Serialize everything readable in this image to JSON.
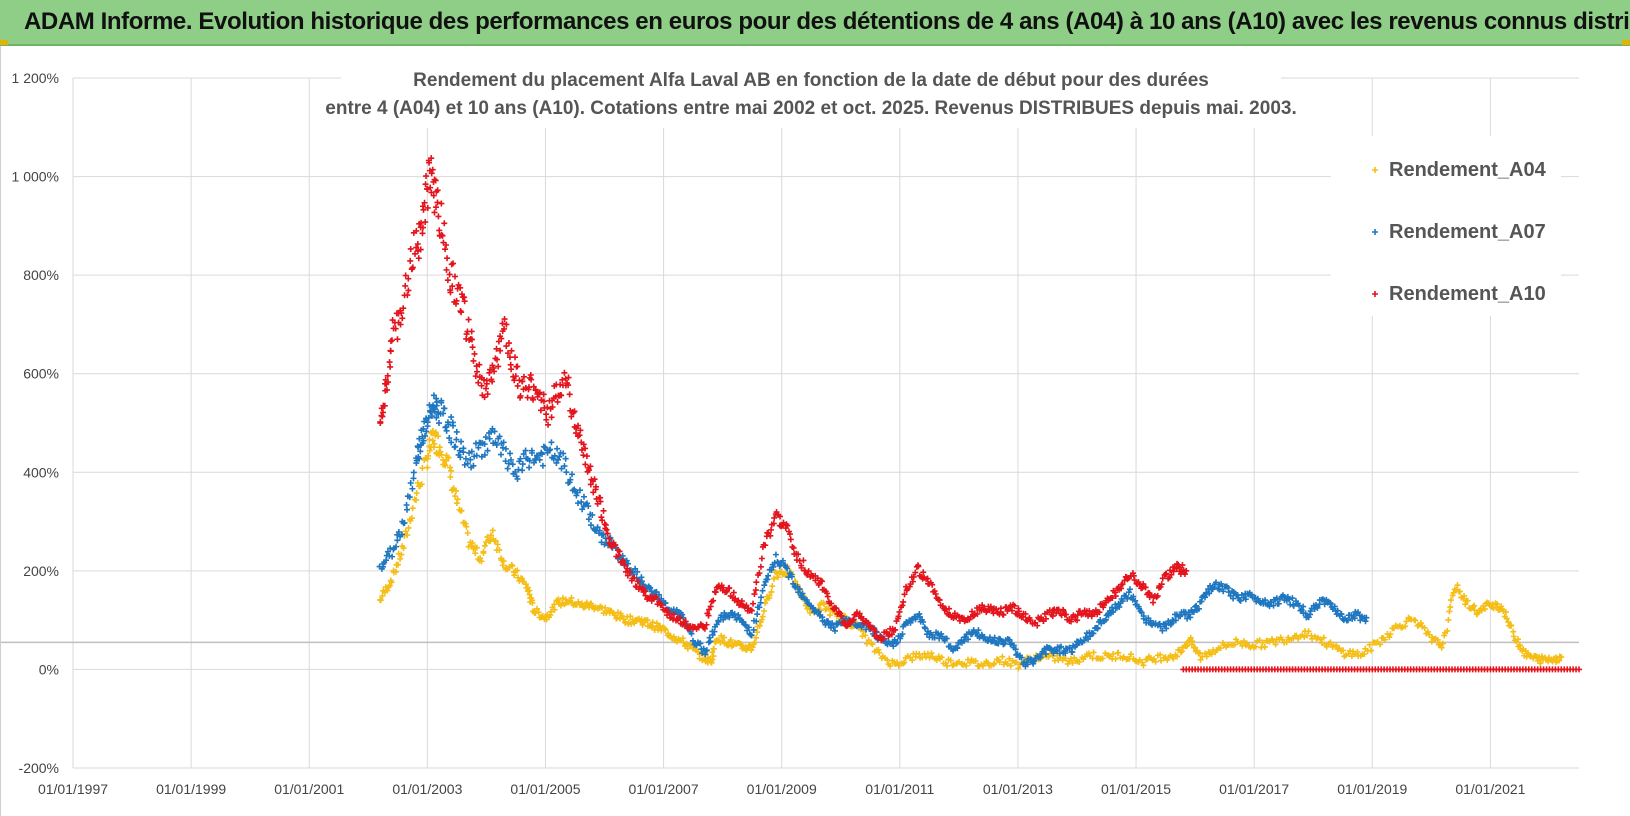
{
  "header": {
    "title": "ADAM Informe. Evolution historique des performances en euros pour des détentions de 4 ans (A04) à 10 ans (A10) avec les revenus connus distribués"
  },
  "colors": {
    "header_bg": "#8fce86",
    "a04": "#f5be16",
    "a07": "#1f77c0",
    "a10": "#e3141c",
    "grid": "#d9d9d9",
    "ref_line": "#bfbfbf"
  },
  "chart_data": {
    "type": "scatter",
    "title_line1": "Rendement du placement Alfa Laval AB en fonction de la date de début pour des durées",
    "title_line2": "entre 4 (A04) et 10 ans (A10). Cotations entre mai 2002 et oct. 2025. Revenus DISTRIBUES depuis mai. 2003.",
    "ylim": [
      -200,
      1200
    ],
    "yticks": [
      -200,
      0,
      200,
      400,
      600,
      800,
      1000,
      1200
    ],
    "ytick_labels": [
      "-200%",
      "0%",
      "200%",
      "400%",
      "600%",
      "800%",
      "1 000%",
      "1 200%"
    ],
    "xlim": [
      1997.0,
      2022.5
    ],
    "xticks": [
      1997,
      1999,
      2001,
      2003,
      2005,
      2007,
      2009,
      2011,
      2013,
      2015,
      2017,
      2019,
      2021
    ],
    "xtick_labels": [
      "01/01/1997",
      "01/01/1999",
      "01/01/2001",
      "01/01/2003",
      "01/01/2005",
      "01/01/2007",
      "01/01/2009",
      "01/01/2011",
      "01/01/2013",
      "01/01/2015",
      "01/01/2017",
      "01/01/2019",
      "01/01/2021"
    ],
    "reference_line_y": 55,
    "legend_position": "right",
    "series": [
      {
        "name": "Rendement_A04",
        "points": [
          [
            2002.2,
            140
          ],
          [
            2002.4,
            185
          ],
          [
            2002.6,
            250
          ],
          [
            2002.8,
            350
          ],
          [
            2003.0,
            430
          ],
          [
            2003.1,
            470
          ],
          [
            2003.2,
            455
          ],
          [
            2003.35,
            420
          ],
          [
            2003.5,
            340
          ],
          [
            2003.7,
            260
          ],
          [
            2003.9,
            225
          ],
          [
            2004.1,
            280
          ],
          [
            2004.3,
            215
          ],
          [
            2004.5,
            195
          ],
          [
            2004.7,
            165
          ],
          [
            2004.8,
            120
          ],
          [
            2005.0,
            105
          ],
          [
            2005.2,
            135
          ],
          [
            2005.4,
            140
          ],
          [
            2005.6,
            130
          ],
          [
            2005.8,
            130
          ],
          [
            2006.0,
            120
          ],
          [
            2006.2,
            110
          ],
          [
            2006.4,
            100
          ],
          [
            2006.6,
            100
          ],
          [
            2006.8,
            90
          ],
          [
            2007.0,
            80
          ],
          [
            2007.2,
            65
          ],
          [
            2007.4,
            50
          ],
          [
            2007.6,
            30
          ],
          [
            2007.8,
            15
          ],
          [
            2007.9,
            65
          ],
          [
            2008.1,
            55
          ],
          [
            2008.3,
            45
          ],
          [
            2008.5,
            45
          ],
          [
            2008.7,
            120
          ],
          [
            2008.9,
            195
          ],
          [
            2009.1,
            200
          ],
          [
            2009.3,
            160
          ],
          [
            2009.5,
            115
          ],
          [
            2009.7,
            130
          ],
          [
            2009.9,
            110
          ],
          [
            2010.1,
            100
          ],
          [
            2010.3,
            85
          ],
          [
            2010.6,
            35
          ],
          [
            2010.9,
            10
          ],
          [
            2011.2,
            25
          ],
          [
            2011.5,
            30
          ],
          [
            2011.8,
            15
          ],
          [
            2012.1,
            15
          ],
          [
            2012.4,
            10
          ],
          [
            2012.7,
            20
          ],
          [
            2013.0,
            10
          ],
          [
            2013.3,
            25
          ],
          [
            2013.6,
            25
          ],
          [
            2013.9,
            15
          ],
          [
            2014.2,
            30
          ],
          [
            2014.5,
            25
          ],
          [
            2014.8,
            30
          ],
          [
            2015.1,
            15
          ],
          [
            2015.4,
            25
          ],
          [
            2015.7,
            30
          ],
          [
            2015.9,
            60
          ],
          [
            2016.1,
            25
          ],
          [
            2016.4,
            45
          ],
          [
            2016.7,
            55
          ],
          [
            2017.0,
            50
          ],
          [
            2017.3,
            55
          ],
          [
            2017.6,
            65
          ],
          [
            2017.9,
            75
          ],
          [
            2018.2,
            55
          ],
          [
            2018.5,
            35
          ],
          [
            2018.8,
            30
          ],
          [
            2019.1,
            55
          ],
          [
            2019.4,
            85
          ],
          [
            2019.7,
            105
          ],
          [
            2020.0,
            60
          ],
          [
            2020.2,
            50
          ],
          [
            2020.4,
            170
          ],
          [
            2020.6,
            135
          ],
          [
            2020.8,
            115
          ],
          [
            2021.0,
            135
          ],
          [
            2021.2,
            125
          ],
          [
            2021.4,
            70
          ],
          [
            2021.6,
            30
          ],
          [
            2021.8,
            20
          ],
          [
            2022.0,
            20
          ],
          [
            2022.2,
            25
          ]
        ]
      },
      {
        "name": "Rendement_A07",
        "points": [
          [
            2002.2,
            205
          ],
          [
            2002.4,
            240
          ],
          [
            2002.6,
            300
          ],
          [
            2002.8,
            420
          ],
          [
            2002.9,
            470
          ],
          [
            2003.0,
            500
          ],
          [
            2003.1,
            540
          ],
          [
            2003.2,
            525
          ],
          [
            2003.35,
            500
          ],
          [
            2003.5,
            460
          ],
          [
            2003.7,
            420
          ],
          [
            2003.9,
            450
          ],
          [
            2004.1,
            470
          ],
          [
            2004.3,
            440
          ],
          [
            2004.5,
            395
          ],
          [
            2004.7,
            430
          ],
          [
            2004.9,
            430
          ],
          [
            2005.1,
            440
          ],
          [
            2005.3,
            420
          ],
          [
            2005.5,
            360
          ],
          [
            2005.7,
            330
          ],
          [
            2005.9,
            270
          ],
          [
            2006.1,
            260
          ],
          [
            2006.3,
            220
          ],
          [
            2006.5,
            200
          ],
          [
            2006.7,
            165
          ],
          [
            2006.9,
            150
          ],
          [
            2007.1,
            120
          ],
          [
            2007.3,
            110
          ],
          [
            2007.5,
            60
          ],
          [
            2007.7,
            35
          ],
          [
            2007.9,
            95
          ],
          [
            2008.1,
            115
          ],
          [
            2008.3,
            100
          ],
          [
            2008.5,
            75
          ],
          [
            2008.7,
            165
          ],
          [
            2008.9,
            225
          ],
          [
            2009.1,
            200
          ],
          [
            2009.3,
            160
          ],
          [
            2009.5,
            130
          ],
          [
            2009.7,
            100
          ],
          [
            2009.9,
            85
          ],
          [
            2010.1,
            100
          ],
          [
            2010.3,
            90
          ],
          [
            2010.5,
            85
          ],
          [
            2010.7,
            55
          ],
          [
            2010.9,
            50
          ],
          [
            2011.1,
            90
          ],
          [
            2011.3,
            110
          ],
          [
            2011.5,
            70
          ],
          [
            2011.7,
            70
          ],
          [
            2011.9,
            40
          ],
          [
            2012.1,
            65
          ],
          [
            2012.3,
            75
          ],
          [
            2012.5,
            60
          ],
          [
            2012.7,
            60
          ],
          [
            2012.9,
            55
          ],
          [
            2013.1,
            10
          ],
          [
            2013.3,
            20
          ],
          [
            2013.5,
            40
          ],
          [
            2013.7,
            40
          ],
          [
            2013.9,
            40
          ],
          [
            2014.1,
            60
          ],
          [
            2014.3,
            80
          ],
          [
            2014.5,
            110
          ],
          [
            2014.7,
            130
          ],
          [
            2014.9,
            155
          ],
          [
            2015.1,
            110
          ],
          [
            2015.3,
            90
          ],
          [
            2015.5,
            85
          ],
          [
            2015.7,
            110
          ],
          [
            2015.9,
            110
          ],
          [
            2016.1,
            135
          ],
          [
            2016.3,
            170
          ],
          [
            2016.5,
            165
          ],
          [
            2016.7,
            145
          ],
          [
            2016.9,
            150
          ],
          [
            2017.1,
            140
          ],
          [
            2017.3,
            135
          ],
          [
            2017.5,
            145
          ],
          [
            2017.7,
            135
          ],
          [
            2017.9,
            110
          ],
          [
            2018.1,
            135
          ],
          [
            2018.3,
            135
          ],
          [
            2018.5,
            105
          ],
          [
            2018.7,
            110
          ],
          [
            2018.9,
            105
          ]
        ]
      },
      {
        "name": "Rendement_A10",
        "points": [
          [
            2002.2,
            500
          ],
          [
            2002.3,
            560
          ],
          [
            2002.4,
            680
          ],
          [
            2002.55,
            700
          ],
          [
            2002.7,
            820
          ],
          [
            2002.85,
            870
          ],
          [
            2002.95,
            930
          ],
          [
            2003.05,
            1010
          ],
          [
            2003.15,
            960
          ],
          [
            2003.25,
            890
          ],
          [
            2003.4,
            800
          ],
          [
            2003.55,
            760
          ],
          [
            2003.7,
            680
          ],
          [
            2003.85,
            600
          ],
          [
            2004.0,
            560
          ],
          [
            2004.15,
            620
          ],
          [
            2004.3,
            700
          ],
          [
            2004.45,
            620
          ],
          [
            2004.6,
            560
          ],
          [
            2004.75,
            580
          ],
          [
            2004.9,
            550
          ],
          [
            2005.05,
            520
          ],
          [
            2005.2,
            560
          ],
          [
            2005.35,
            600
          ],
          [
            2005.5,
            500
          ],
          [
            2005.65,
            440
          ],
          [
            2005.8,
            380
          ],
          [
            2005.95,
            320
          ],
          [
            2006.1,
            260
          ],
          [
            2006.3,
            220
          ],
          [
            2006.5,
            180
          ],
          [
            2006.7,
            150
          ],
          [
            2006.9,
            140
          ],
          [
            2007.1,
            110
          ],
          [
            2007.3,
            100
          ],
          [
            2007.5,
            80
          ],
          [
            2007.7,
            90
          ],
          [
            2007.9,
            170
          ],
          [
            2008.1,
            160
          ],
          [
            2008.3,
            135
          ],
          [
            2008.5,
            120
          ],
          [
            2008.7,
            250
          ],
          [
            2008.9,
            310
          ],
          [
            2009.1,
            280
          ],
          [
            2009.3,
            220
          ],
          [
            2009.5,
            190
          ],
          [
            2009.7,
            170
          ],
          [
            2009.9,
            120
          ],
          [
            2010.1,
            90
          ],
          [
            2010.3,
            115
          ],
          [
            2010.5,
            80
          ],
          [
            2010.7,
            65
          ],
          [
            2010.9,
            80
          ],
          [
            2011.1,
            160
          ],
          [
            2011.3,
            205
          ],
          [
            2011.5,
            175
          ],
          [
            2011.7,
            130
          ],
          [
            2011.9,
            110
          ],
          [
            2012.1,
            100
          ],
          [
            2012.3,
            120
          ],
          [
            2012.5,
            125
          ],
          [
            2012.7,
            115
          ],
          [
            2012.9,
            125
          ],
          [
            2013.1,
            110
          ],
          [
            2013.3,
            95
          ],
          [
            2013.5,
            110
          ],
          [
            2013.7,
            120
          ],
          [
            2013.9,
            100
          ],
          [
            2014.1,
            115
          ],
          [
            2014.3,
            110
          ],
          [
            2014.5,
            140
          ],
          [
            2014.7,
            160
          ],
          [
            2014.9,
            195
          ],
          [
            2015.1,
            170
          ],
          [
            2015.3,
            140
          ],
          [
            2015.5,
            190
          ],
          [
            2015.7,
            205
          ],
          [
            2015.85,
            200
          ]
        ]
      }
    ],
    "zero_segment": {
      "series": "Rendement_A10",
      "x_from": 2015.8,
      "x_to": 2022.5,
      "y": 0
    }
  }
}
